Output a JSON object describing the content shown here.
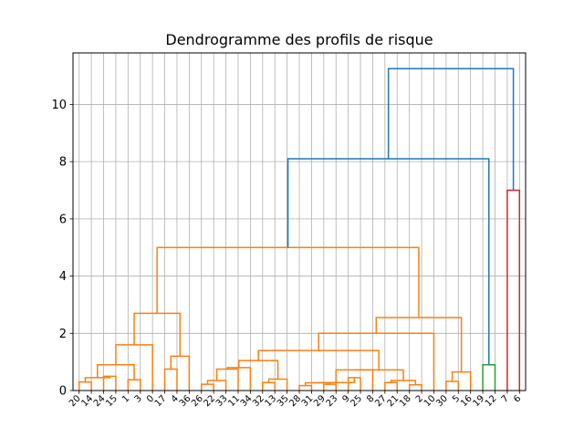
{
  "chart_data": {
    "type": "dendrogram",
    "title": "Dendrogramme des profils de risque",
    "xlabel": "",
    "ylabel": "",
    "ylim": [
      0,
      11.8
    ],
    "grid": true,
    "y_ticks": [
      0,
      2,
      4,
      6,
      8,
      10
    ],
    "leaf_order": [
      "20",
      "14",
      "24",
      "15",
      "1",
      "3",
      "0",
      "17",
      "4",
      "36",
      "26",
      "22",
      "33",
      "11",
      "34",
      "32",
      "13",
      "35",
      "28",
      "31",
      "29",
      "23",
      "9",
      "25",
      "8",
      "27",
      "21",
      "18",
      "2",
      "10",
      "30",
      "5",
      "16",
      "19",
      "12",
      "7",
      "6"
    ],
    "cluster_colors": {
      "orange": "#ff7f0e",
      "green": "#2ca02c",
      "red": "#d62728",
      "blue": "#1f77b4"
    },
    "merges": [
      {
        "left": "20",
        "right": "14",
        "height": 0.3,
        "color": "orange"
      },
      {
        "left": "24",
        "right": "15",
        "height": 0.5,
        "color": "orange"
      },
      {
        "left": "20+14",
        "right": "24+15",
        "height": 0.45,
        "color": "orange"
      },
      {
        "left": "1",
        "right": "3",
        "height": 0.38,
        "color": "orange"
      },
      {
        "left": "{20,14,24,15}",
        "right": "1+3",
        "height": 0.9,
        "color": "orange"
      },
      {
        "left": "{20,14,24,15,1,3}",
        "right": "0",
        "height": 1.6,
        "color": "orange"
      },
      {
        "left": "17",
        "right": "4",
        "height": 0.75,
        "color": "orange"
      },
      {
        "left": "17+4",
        "right": "36",
        "height": 1.2,
        "color": "orange"
      },
      {
        "left": "{20..0}",
        "right": "{17,4,36}",
        "height": 2.7,
        "color": "orange"
      },
      {
        "left": "26",
        "right": "22",
        "height": 0.22,
        "color": "orange"
      },
      {
        "left": "26+22",
        "right": "33",
        "height": 0.35,
        "color": "orange"
      },
      {
        "left": "{26,22,33}",
        "right": "11",
        "height": 0.75,
        "color": "orange"
      },
      {
        "left": "{26,22,33,11}",
        "right": "34",
        "height": 0.8,
        "color": "orange"
      },
      {
        "left": "32",
        "right": "13",
        "height": 0.28,
        "color": "orange"
      },
      {
        "left": "32+13",
        "right": "35",
        "height": 0.4,
        "color": "orange"
      },
      {
        "left": "{26..34}",
        "right": "{32,13,35}",
        "height": 1.05,
        "color": "orange"
      },
      {
        "left": "28",
        "right": "31",
        "height": 0.17,
        "color": "orange"
      },
      {
        "left": "29",
        "right": "23",
        "height": 0.22,
        "color": "orange"
      },
      {
        "left": "28+31",
        "right": "29+23",
        "height": 0.27,
        "color": "orange"
      },
      {
        "left": "9",
        "right": "25",
        "height": 0.45,
        "color": "orange"
      },
      {
        "left": "{28,31,29,23}",
        "right": "9+25",
        "height": 0.28,
        "color": "orange"
      },
      {
        "left": "{28..25}",
        "right": "8",
        "height": 0.72,
        "color": "orange"
      },
      {
        "left": "27",
        "right": "21",
        "height": 0.28,
        "color": "orange"
      },
      {
        "left": "18",
        "right": "2",
        "height": 0.2,
        "color": "orange"
      },
      {
        "left": "27+21",
        "right": "18+2",
        "height": 0.35,
        "color": "orange"
      },
      {
        "left": "{28..8}",
        "right": "{27,21,18,2}",
        "height": 1.4,
        "color": "orange"
      },
      {
        "left": "{26..35}",
        "right": "{28..2}",
        "height": 1.4,
        "color": "orange"
      },
      {
        "left": "{26..2}",
        "right": "10",
        "height": 2.0,
        "color": "orange"
      },
      {
        "left": "30",
        "right": "5",
        "height": 0.32,
        "color": "orange"
      },
      {
        "left": "30+5",
        "right": "16",
        "height": 0.65,
        "color": "orange"
      },
      {
        "left": "{26..10}",
        "right": "{30,5,16}",
        "height": 2.55,
        "color": "orange"
      },
      {
        "left": "{20..36}",
        "right": "{26..16}",
        "height": 5.0,
        "color": "orange"
      },
      {
        "left": "19",
        "right": "12",
        "height": 0.9,
        "color": "green"
      },
      {
        "left": "{20..16}",
        "right": "19+12",
        "height": 8.1,
        "color": "blue"
      },
      {
        "left": "7",
        "right": "6",
        "height": 7.0,
        "color": "red"
      },
      {
        "left": "{20..12}",
        "right": "7+6",
        "height": 11.25,
        "color": "blue"
      }
    ]
  }
}
